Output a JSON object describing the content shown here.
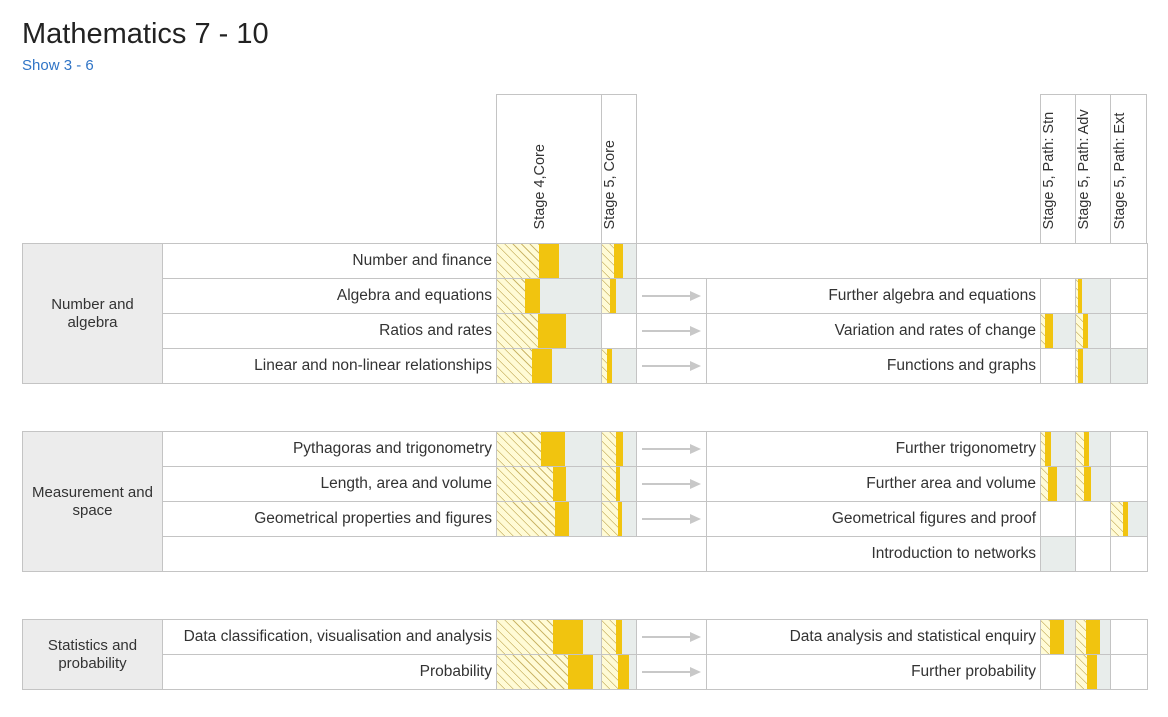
{
  "page": {
    "title": "Mathematics 7 - 10",
    "show_link": "Show 3 - 6"
  },
  "columns": {
    "stage4_core": "Stage 4,Core",
    "stage5_core": "Stage 5, Core",
    "stage5_stn": "Stage 5, Path: Stn",
    "stage5_adv": "Stage 5, Path: Adv",
    "stage5_ext": "Stage 5, Path: Ext"
  },
  "colors": {
    "solid": "#f1c40f",
    "hatch_background": "#fffbd6",
    "grey_fill": "#e8edeb",
    "strand_background": "#ececec",
    "link": "#2f74c6"
  },
  "groups": [
    {
      "strand": "Number and algebra",
      "rows": [
        {
          "topic": "Number and finance",
          "continuation": null,
          "s4": {
            "hatch": 0.4,
            "solid": 0.19
          },
          "s5": {
            "hatch": 0.35,
            "solid": 0.25
          },
          "stn": null,
          "adv": null,
          "ext": null
        },
        {
          "topic": "Algebra and equations",
          "continuation": "Further algebra and equations",
          "s4": {
            "hatch": 0.27,
            "solid": 0.14
          },
          "s5": {
            "hatch": 0.22,
            "solid": 0.18
          },
          "stn": null,
          "adv": {
            "hatch": 0.07,
            "solid": 0.12
          },
          "ext": null
        },
        {
          "topic": "Ratios and rates",
          "continuation": "Variation and rates of change",
          "s4": {
            "hatch": 0.39,
            "solid": 0.27
          },
          "s5": null,
          "stn": {
            "hatch": 0.1,
            "solid": 0.22
          },
          "adv": {
            "hatch": 0.2,
            "solid": 0.13
          },
          "ext": null
        },
        {
          "topic": "Linear and non-linear relationships",
          "continuation": "Functions and graphs",
          "s4": {
            "hatch": 0.33,
            "solid": 0.19
          },
          "s5": {
            "hatch": 0.15,
            "solid": 0.15
          },
          "stn": null,
          "adv": {
            "hatch": 0.07,
            "solid": 0.14
          },
          "ext": {
            "hatch": 0,
            "solid": 0
          }
        }
      ]
    },
    {
      "strand": "Measurement and space",
      "rows": [
        {
          "topic": "Pythagoras and trigonometry",
          "continuation": "Further trigonometry",
          "s4": {
            "hatch": 0.42,
            "solid": 0.23
          },
          "s5": {
            "hatch": 0.4,
            "solid": 0.2
          },
          "stn": {
            "hatch": 0.11,
            "solid": 0.16
          },
          "adv": {
            "hatch": 0.23,
            "solid": 0.14
          },
          "ext": null
        },
        {
          "topic": "Length, area and volume",
          "continuation": "Further area and volume",
          "s4": {
            "hatch": 0.53,
            "solid": 0.12
          },
          "s5": {
            "hatch": 0.4,
            "solid": 0.1
          },
          "stn": {
            "hatch": 0.2,
            "solid": 0.26
          },
          "adv": {
            "hatch": 0.23,
            "solid": 0.2
          },
          "ext": null
        },
        {
          "topic": "Geometrical properties and figures",
          "continuation": "Geometrical figures and proof",
          "s4": {
            "hatch": 0.55,
            "solid": 0.13
          },
          "s5": {
            "hatch": 0.46,
            "solid": 0.1
          },
          "stn": null,
          "adv": null,
          "ext": {
            "hatch": 0.34,
            "solid": 0.14
          }
        },
        {
          "topic": "",
          "continuation": "Introduction to networks",
          "s4": null,
          "s5": null,
          "stn": {
            "hatch": 0,
            "solid": 0
          },
          "adv": null,
          "ext": null
        }
      ]
    },
    {
      "strand": "Statistics and probability",
      "rows": [
        {
          "topic": "Data classification, visualisation and analysis",
          "continuation": "Data analysis and statistical enquiry",
          "s4": {
            "hatch": 0.53,
            "solid": 0.29
          },
          "s5": {
            "hatch": 0.4,
            "solid": 0.18
          },
          "stn": {
            "hatch": 0.26,
            "solid": 0.4
          },
          "adv": {
            "hatch": 0.29,
            "solid": 0.4
          },
          "ext": null
        },
        {
          "topic": "Probability",
          "continuation": "Further probability",
          "s4": {
            "hatch": 0.68,
            "solid": 0.24
          },
          "s5": {
            "hatch": 0.45,
            "solid": 0.3
          },
          "stn": null,
          "adv": {
            "hatch": 0.31,
            "solid": 0.29
          },
          "ext": null
        }
      ]
    }
  ]
}
